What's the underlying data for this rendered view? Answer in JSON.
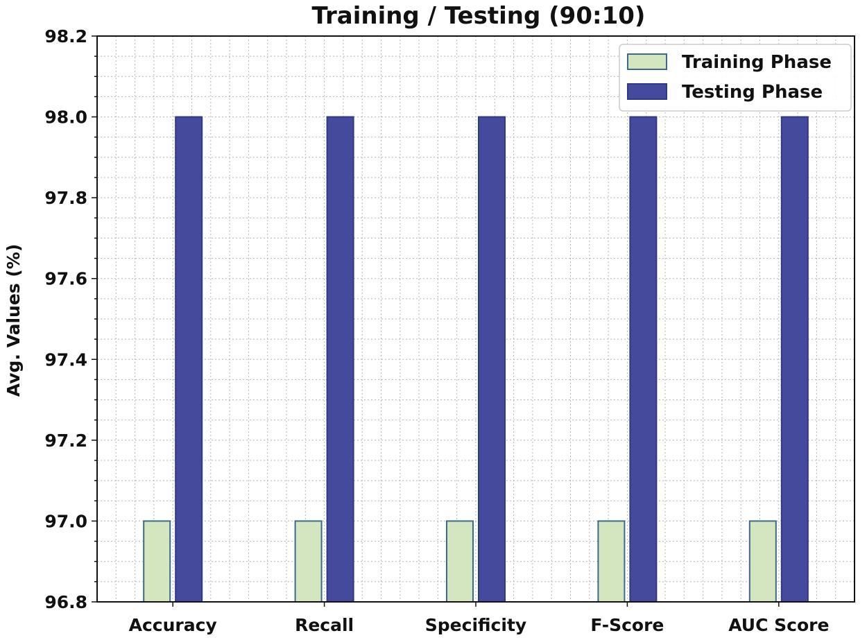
{
  "chart_data": {
    "type": "bar",
    "title": "Training / Testing (90:10)",
    "xlabel": "",
    "ylabel": "Avg. Values (%)",
    "categories": [
      "Accuracy",
      "Recall",
      "Specificity",
      "F-Score",
      "AUC Score"
    ],
    "series": [
      {
        "name": "Training Phase",
        "values": [
          97.0,
          97.0,
          97.0,
          97.0,
          97.0
        ],
        "color": "#d4e6bf",
        "edge": "#3d6a8c"
      },
      {
        "name": "Testing Phase",
        "values": [
          98.0,
          98.0,
          98.0,
          98.0,
          98.0
        ],
        "color": "#464a9c",
        "edge": "#2f3a82"
      }
    ],
    "ylim": [
      96.8,
      98.2
    ],
    "yticks": [
      "96.8",
      "97.0",
      "97.2",
      "97.4",
      "97.6",
      "97.8",
      "98.0",
      "98.2"
    ],
    "grid": true,
    "legend": "top-right"
  }
}
